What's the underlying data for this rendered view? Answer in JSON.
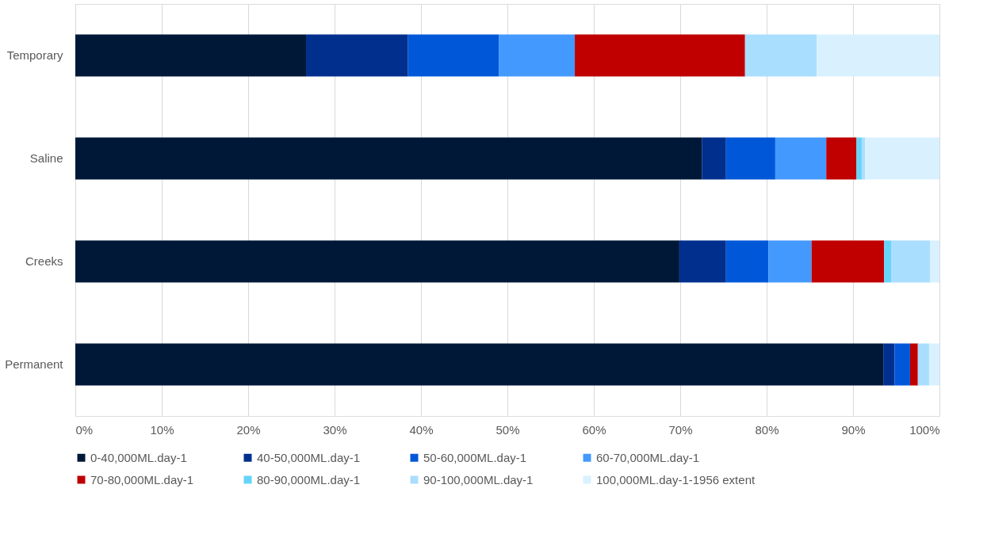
{
  "chart_data": {
    "type": "bar",
    "orientation": "horizontal",
    "stacked": true,
    "categories": [
      "Temporary",
      "Saline",
      "Creeks",
      "Permanent"
    ],
    "series": [
      {
        "name": "0-40,000ML.day-1",
        "color": "#001838",
        "values": [
          26.7,
          72.5,
          69.9,
          93.5
        ]
      },
      {
        "name": "40-50,000ML.day-1",
        "color": "#002f8e",
        "values": [
          11.8,
          2.8,
          5.4,
          1.3
        ]
      },
      {
        "name": "50-60,000ML.day-1",
        "color": "#0058d9",
        "values": [
          10.5,
          5.7,
          4.9,
          1.8
        ]
      },
      {
        "name": "60-70,000ML.day-1",
        "color": "#4499ff",
        "values": [
          8.8,
          5.9,
          5.0,
          0
        ]
      },
      {
        "name": "70-80,000ML.day-1",
        "color": "#c00000",
        "values": [
          19.7,
          3.5,
          8.4,
          0.9
        ]
      },
      {
        "name": "80-90,000ML.day-1",
        "color": "#66d4fa",
        "values": [
          0,
          0.6,
          0.8,
          0
        ]
      },
      {
        "name": "90-100,000ML.day-1",
        "color": "#aadeff",
        "values": [
          8.3,
          0.4,
          4.5,
          1.3
        ]
      },
      {
        "name": "100,000ML.day-1-1956 extent",
        "color": "#d9f1ff",
        "values": [
          14.2,
          8.6,
          1.1,
          1.2
        ]
      }
    ],
    "xlim": [
      0,
      100
    ],
    "xticks": [
      {
        "value": 0,
        "label": "0%"
      },
      {
        "value": 10,
        "label": "10%"
      },
      {
        "value": 20,
        "label": "20%"
      },
      {
        "value": 30,
        "label": "30%"
      },
      {
        "value": 40,
        "label": "40%"
      },
      {
        "value": 50,
        "label": "50%"
      },
      {
        "value": 60,
        "label": "60%"
      },
      {
        "value": 70,
        "label": "70%"
      },
      {
        "value": 80,
        "label": "80%"
      },
      {
        "value": 90,
        "label": "90%"
      },
      {
        "value": 100,
        "label": "100%"
      }
    ],
    "grid": "x",
    "legend": "bottom"
  }
}
